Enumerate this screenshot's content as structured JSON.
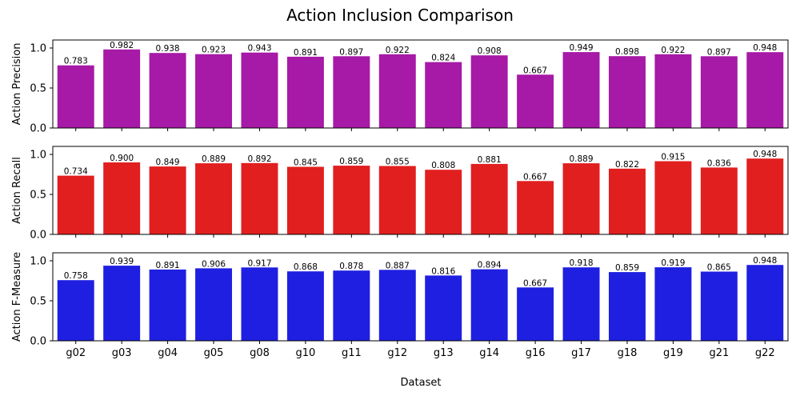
{
  "chart_data": {
    "type": "bar",
    "title": "Action Inclusion Comparison",
    "xlabel": "Dataset",
    "categories": [
      "g02",
      "g03",
      "g04",
      "g05",
      "g08",
      "g10",
      "g11",
      "g12",
      "g13",
      "g14",
      "g16",
      "g17",
      "g18",
      "g19",
      "g21",
      "g22"
    ],
    "ylim": [
      0,
      1.1
    ],
    "yticks": [
      "0.0",
      "0.5",
      "1.0"
    ],
    "grid": false,
    "panels": [
      {
        "ylabel": "Action Precision",
        "color": "#a719a7",
        "values": [
          0.783,
          0.982,
          0.938,
          0.923,
          0.943,
          0.891,
          0.897,
          0.922,
          0.824,
          0.908,
          0.667,
          0.949,
          0.898,
          0.922,
          0.897,
          0.948
        ],
        "labels": [
          "0.783",
          "0.982",
          "0.938",
          "0.923",
          "0.943",
          "0.891",
          "0.897",
          "0.922",
          "0.824",
          "0.908",
          "0.667",
          "0.949",
          "0.898",
          "0.922",
          "0.897",
          "0.948"
        ]
      },
      {
        "ylabel": "Action Recall",
        "color": "#e11f1f",
        "values": [
          0.734,
          0.9,
          0.849,
          0.889,
          0.892,
          0.845,
          0.859,
          0.855,
          0.808,
          0.881,
          0.667,
          0.889,
          0.822,
          0.915,
          0.836,
          0.948
        ],
        "labels": [
          "0.734",
          "0.900",
          "0.849",
          "0.889",
          "0.892",
          "0.845",
          "0.859",
          "0.855",
          "0.808",
          "0.881",
          "0.667",
          "0.889",
          "0.822",
          "0.915",
          "0.836",
          "0.948"
        ]
      },
      {
        "ylabel": "Action F-Measure",
        "color": "#1f1fe1",
        "values": [
          0.758,
          0.939,
          0.891,
          0.906,
          0.917,
          0.868,
          0.878,
          0.887,
          0.816,
          0.894,
          0.667,
          0.918,
          0.859,
          0.919,
          0.865,
          0.948
        ],
        "labels": [
          "0.758",
          "0.939",
          "0.891",
          "0.906",
          "0.917",
          "0.868",
          "0.878",
          "0.887",
          "0.816",
          "0.894",
          "0.667",
          "0.918",
          "0.859",
          "0.919",
          "0.865",
          "0.948"
        ]
      }
    ]
  }
}
